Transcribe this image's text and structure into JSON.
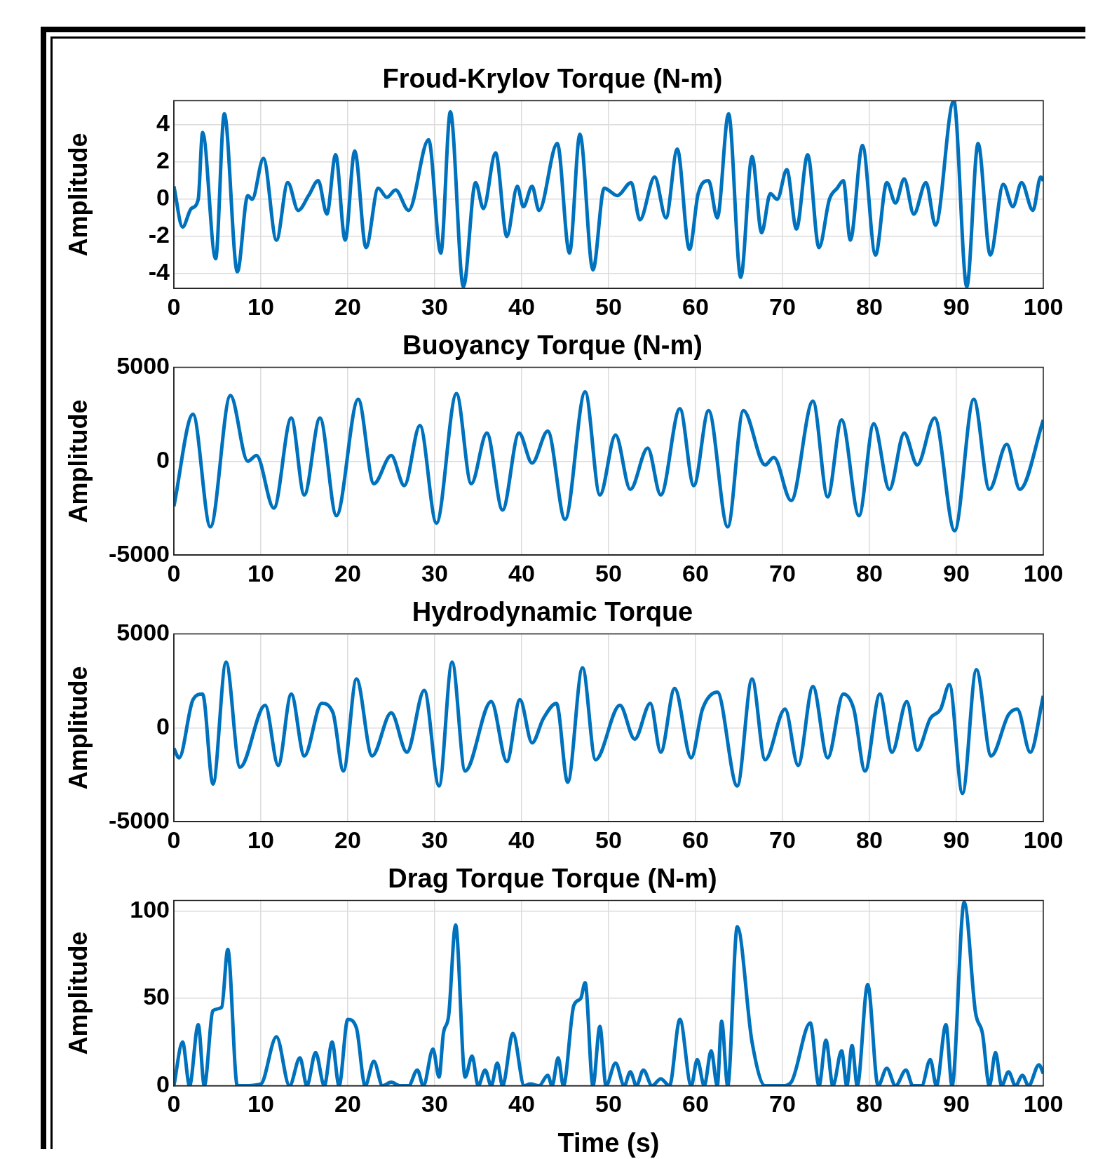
{
  "chart_data": [
    {
      "type": "line",
      "title": "Froud-Krylov Torque (N-m)",
      "ylabel": "Amplitude",
      "color": "#0072bd",
      "grid": true,
      "xlim": [
        0,
        100
      ],
      "xticks": [
        0,
        10,
        20,
        30,
        40,
        50,
        60,
        70,
        80,
        90,
        100
      ],
      "ylim": [
        -4.8,
        5.3
      ],
      "yticks": [
        -4,
        -2,
        0,
        2,
        4
      ],
      "x": [
        0,
        1,
        2,
        2.8,
        3.3,
        4.8,
        5.8,
        7.3,
        8.5,
        9,
        10.3,
        11.8,
        13.1,
        14.3,
        15.5,
        16.6,
        17.6,
        18.6,
        19.7,
        20.8,
        22.1,
        23.5,
        24.5,
        25.5,
        27,
        29.3,
        30.7,
        31.8,
        33.3,
        34.7,
        35.6,
        37,
        38.3,
        39.5,
        40.2,
        41.2,
        42,
        44.1,
        45.5,
        46.7,
        48.2,
        49.5,
        51,
        52.6,
        53.6,
        55.3,
        56.6,
        57.9,
        59.3,
        60.3,
        61.5,
        62.5,
        63.8,
        65.2,
        66.5,
        67.6,
        68.6,
        69.4,
        70.5,
        71.6,
        72.9,
        74.2,
        75.4,
        76.3,
        77,
        77.8,
        79.2,
        80.7,
        82,
        83,
        84,
        85.1,
        86.5,
        87.6,
        89.7,
        91.2,
        92.5,
        93.9,
        95.4,
        96.5,
        97.5,
        98.8,
        99.7,
        100
      ],
      "values": [
        0.7,
        -1.5,
        -0.5,
        0,
        3.6,
        -3.2,
        4.6,
        -3.9,
        0.2,
        0,
        2.2,
        -2.2,
        0.9,
        -0.6,
        0.2,
        1,
        -0.8,
        2.4,
        -2.2,
        2.6,
        -2.6,
        0.6,
        0.1,
        0.5,
        -0.6,
        3.2,
        -2.9,
        4.7,
        -4.7,
        0.9,
        -0.5,
        2.5,
        -2,
        0.7,
        -0.4,
        0.7,
        -0.6,
        3,
        -2.9,
        3.5,
        -3.8,
        0.6,
        0.2,
        0.9,
        -1.1,
        1.2,
        -1,
        2.7,
        -2.7,
        0.3,
        1,
        -1,
        4.6,
        -4.2,
        2.3,
        -1.8,
        0.3,
        0,
        1.6,
        -1.6,
        2.4,
        -2.6,
        0,
        0.6,
        1,
        -2.2,
        2.9,
        -3,
        0.9,
        -0.2,
        1.1,
        -0.8,
        0.9,
        -1.4,
        5.3,
        -4.7,
        3,
        -3,
        0.8,
        -0.4,
        0.9,
        -0.6,
        1.2,
        1
      ]
    },
    {
      "type": "line",
      "title": "Buoyancy Torque (N-m)",
      "ylabel": "Amplitude",
      "color": "#0072bd",
      "grid": true,
      "xlim": [
        0,
        100
      ],
      "xticks": [
        0,
        10,
        20,
        30,
        40,
        50,
        60,
        70,
        80,
        90,
        100
      ],
      "ylim": [
        -5000,
        5000
      ],
      "yticks": [
        -5000,
        0,
        5000
      ],
      "x": [
        0,
        2.2,
        4.2,
        6.5,
        8.5,
        9.5,
        11.5,
        13.5,
        15,
        16.8,
        18.7,
        21.2,
        23,
        25,
        26.5,
        28.3,
        30.2,
        32.5,
        34.2,
        36,
        37.8,
        39.7,
        41.2,
        43,
        45,
        47.3,
        49,
        50.8,
        52.5,
        54.5,
        56,
        58.2,
        59.8,
        61.5,
        63.7,
        65.5,
        68,
        69,
        71,
        73.5,
        75.2,
        76.8,
        78.8,
        80.5,
        82.3,
        84,
        85.5,
        87.5,
        89.8,
        92,
        93.8,
        95.8,
        97.3,
        100
      ],
      "values": [
        -2400,
        2500,
        -3500,
        3500,
        0,
        300,
        -2500,
        2300,
        -1800,
        2300,
        -2900,
        3300,
        -1200,
        300,
        -1300,
        1900,
        -3300,
        3600,
        -1200,
        1500,
        -2600,
        1500,
        -100,
        1600,
        -3100,
        3700,
        -1800,
        1400,
        -1500,
        700,
        -1800,
        2800,
        -1300,
        2700,
        -3500,
        2700,
        -200,
        200,
        -2100,
        3200,
        -1900,
        2200,
        -2900,
        2000,
        -1500,
        1500,
        -200,
        2300,
        -3700,
        3300,
        -1500,
        900,
        -1500,
        2200
      ]
    },
    {
      "type": "line",
      "title": "Hydrodynamic Torque",
      "ylabel": "Amplitude",
      "color": "#0072bd",
      "grid": true,
      "xlim": [
        0,
        100
      ],
      "xticks": [
        0,
        10,
        20,
        30,
        40,
        50,
        60,
        70,
        80,
        90,
        100
      ],
      "ylim": [
        -5000,
        5000
      ],
      "yticks": [
        -5000,
        0,
        5000
      ],
      "x": [
        0,
        0.6,
        2.2,
        3.3,
        4.5,
        6,
        7.6,
        10.5,
        12,
        13.5,
        15,
        17,
        18.3,
        19.5,
        21,
        22.8,
        25,
        26.8,
        28.8,
        30.5,
        32,
        33.5,
        36.5,
        38.3,
        39.8,
        41.2,
        42.5,
        44,
        45.3,
        47,
        48.5,
        51.3,
        53,
        54.8,
        56,
        57.6,
        59.5,
        60.8,
        62.5,
        64.8,
        66.5,
        68,
        70.3,
        71.8,
        73.5,
        75.2,
        77,
        78.2,
        79.5,
        81.2,
        82.6,
        84.3,
        85.5,
        87,
        88.2,
        89.2,
        90.7,
        92.3,
        94,
        96,
        97,
        98.5,
        100
      ],
      "values": [
        -1100,
        -1600,
        1500,
        1800,
        -3000,
        3500,
        -2100,
        1200,
        -2000,
        1800,
        -1500,
        1300,
        800,
        -2300,
        2600,
        -1500,
        800,
        -1300,
        2000,
        -3100,
        3500,
        -2300,
        1400,
        -1800,
        1500,
        -800,
        500,
        1300,
        -2900,
        3200,
        -1700,
        1200,
        -600,
        1300,
        -1300,
        2100,
        -1600,
        1000,
        1900,
        -3100,
        2600,
        -1700,
        1000,
        -2000,
        2200,
        -1600,
        1800,
        1000,
        -2300,
        1800,
        -1300,
        1400,
        -1200,
        500,
        1000,
        2300,
        -3500,
        3100,
        -1500,
        700,
        1000,
        -1300,
        1700
      ]
    },
    {
      "type": "line",
      "title": "Drag Torque Torque (N-m)",
      "ylabel": "Amplitude",
      "xlabel": "Time (s)",
      "color": "#0072bd",
      "grid": true,
      "xlim": [
        0,
        100
      ],
      "xticks": [
        0,
        10,
        20,
        30,
        40,
        50,
        60,
        70,
        80,
        90,
        100
      ],
      "ylim": [
        0,
        106
      ],
      "yticks": [
        0,
        50,
        100
      ],
      "x": [
        0,
        1,
        1.8,
        2.8,
        3.5,
        4.5,
        5.5,
        6.2,
        7.3,
        8,
        10,
        11.8,
        13.3,
        14.5,
        15.3,
        16.3,
        17.3,
        18.2,
        19,
        20,
        21,
        22,
        23,
        24,
        25,
        26,
        27,
        28,
        28.7,
        29.8,
        30.5,
        31,
        31.6,
        32.4,
        33.5,
        34.3,
        35,
        35.8,
        36.5,
        37.2,
        37.8,
        39,
        40.3,
        41,
        42,
        43,
        43.5,
        44.2,
        44.8,
        46,
        46.8,
        47.3,
        48.2,
        49,
        49.7,
        50.8,
        51.8,
        52.5,
        53.2,
        54,
        55,
        56,
        57,
        58.2,
        59.5,
        60.2,
        61,
        61.8,
        62.5,
        63,
        63.7,
        64.8,
        66.5,
        68,
        70,
        71,
        73.2,
        74.2,
        75,
        75.8,
        76.8,
        77.4,
        78,
        78.6,
        79.8,
        81,
        82,
        83,
        84.2,
        85,
        86,
        87,
        87.7,
        88.8,
        89.5,
        90.9,
        92.2,
        93,
        93.8,
        94.5,
        95.2,
        96,
        96.8,
        97.6,
        98.3,
        99.5,
        100
      ],
      "values": [
        0,
        25,
        0,
        35,
        0,
        43,
        45,
        78,
        0,
        0,
        1,
        28,
        0,
        16,
        0,
        19,
        0,
        25,
        0,
        38,
        33,
        0,
        14,
        0,
        2,
        0,
        0,
        9,
        0,
        21,
        5,
        30,
        40,
        92,
        5,
        17,
        0,
        9,
        0,
        13,
        0,
        30,
        0,
        1,
        0,
        6,
        0,
        16,
        0,
        46,
        50,
        59,
        0,
        34,
        0,
        13,
        0,
        8,
        0,
        9,
        0,
        4,
        0,
        38,
        0,
        15,
        0,
        20,
        0,
        37,
        0,
        91,
        25,
        0,
        0,
        2,
        36,
        0,
        26,
        0,
        20,
        0,
        23,
        0,
        58,
        0,
        10,
        0,
        9,
        0,
        0,
        15,
        0,
        35,
        0,
        105,
        42,
        30,
        0,
        19,
        0,
        8,
        0,
        6,
        0,
        12,
        7
      ]
    }
  ]
}
